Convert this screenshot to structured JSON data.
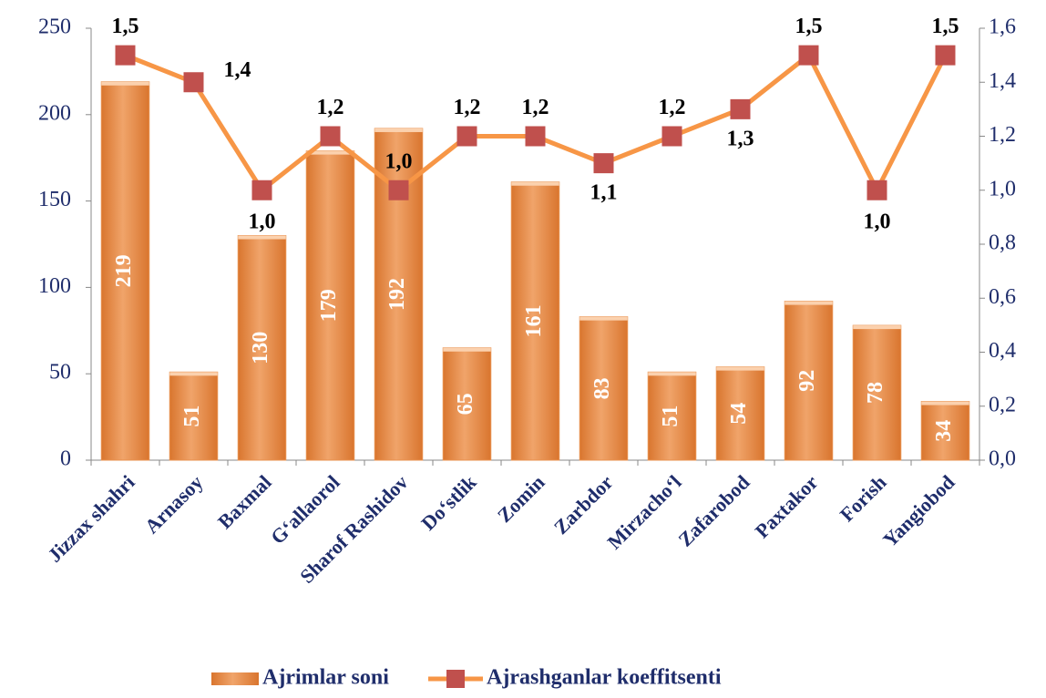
{
  "chart_data": {
    "type": "bar",
    "categories": [
      "Jizzax shahri",
      "Arnasoy",
      "Baxmal",
      "G‘allaorol",
      "Sharof Rashidov",
      "Do‘stlik",
      "Zomin",
      "Zarbdor",
      "Mirzacho‘l",
      "Zafarobod",
      "Paxtakor",
      "Forish",
      "Yangiobod"
    ],
    "series": [
      {
        "name": "Ajrimlar soni",
        "type": "bar",
        "color": "#e8904e",
        "values": [
          219,
          51,
          130,
          179,
          192,
          65,
          161,
          83,
          51,
          54,
          92,
          78,
          34
        ]
      },
      {
        "name": "Ajrashganlar koeffitsenti",
        "type": "line",
        "axis": "y2",
        "color": "#f79646",
        "marker_color": "#c0504d",
        "values": [
          1.5,
          1.4,
          1.0,
          1.2,
          1.0,
          1.2,
          1.2,
          1.1,
          1.2,
          1.3,
          1.5,
          1.0,
          1.5
        ],
        "value_labels": [
          "1,5",
          "1,4",
          "1,0",
          "1,2",
          "1,0",
          "1,2",
          "1,2",
          "1,1",
          "1,2",
          "1,3",
          "1,5",
          "1,0",
          "1,5"
        ]
      }
    ],
    "ylim": [
      0,
      250
    ],
    "yticks": [
      0,
      50,
      100,
      150,
      200,
      250
    ],
    "y2lim": [
      0,
      1.6
    ],
    "y2ticks": [
      {
        "value": 0,
        "label": "0,0"
      },
      {
        "value": 0.2,
        "label": "0,2"
      },
      {
        "value": 0.4,
        "label": "0,4"
      },
      {
        "value": 0.6,
        "label": "0,6"
      },
      {
        "value": 0.8,
        "label": "0,8"
      },
      {
        "value": 1.0,
        "label": "1,0"
      },
      {
        "value": 1.2,
        "label": "1,2"
      },
      {
        "value": 1.4,
        "label": "1,4"
      },
      {
        "value": 1.6,
        "label": "1,6"
      }
    ]
  }
}
